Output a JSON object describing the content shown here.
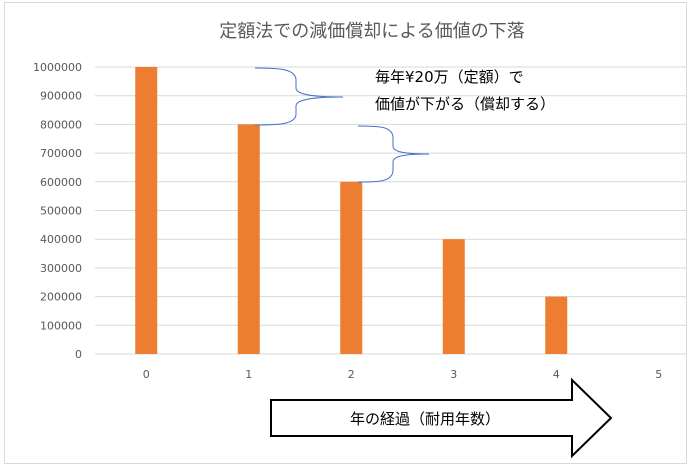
{
  "chart_data": {
    "type": "bar",
    "title": "定額法での減価償却による価値の下落",
    "xlabel": "",
    "ylabel": "",
    "categories": [
      "0",
      "1",
      "2",
      "3",
      "4",
      "5"
    ],
    "series": [
      {
        "values": [
          1000000,
          800000,
          600000,
          400000,
          200000,
          0
        ]
      }
    ],
    "ylim": [
      0,
      1000000
    ],
    "yticks": [
      0,
      100000,
      200000,
      300000,
      400000,
      500000,
      600000,
      700000,
      800000,
      900000,
      1000000
    ],
    "grid": true,
    "legend": "none",
    "bar_color": "#ED7D31",
    "annotations": {
      "brace_note_line1": "毎年¥20万（定額）で",
      "brace_note_line2": "価値が下がる（償却する）",
      "arrow_label": "年の経過（耐用年数）"
    }
  }
}
